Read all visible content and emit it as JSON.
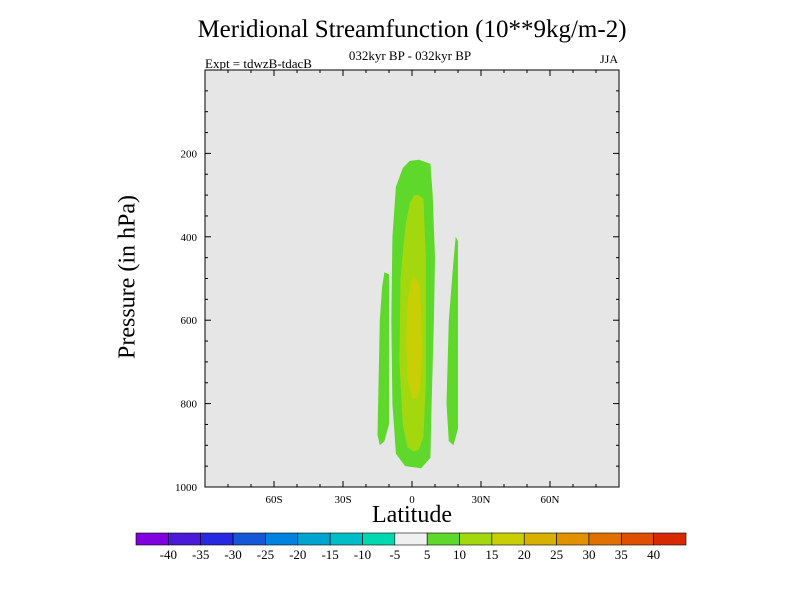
{
  "header": {
    "title": "Meridional Streamfunction (10**9kg/m-2)",
    "subtitle": "032kyr BP - 032kyr BP",
    "experiment": "Expt = tdwzB-tdacB",
    "season": "JJA"
  },
  "chart_data": {
    "type": "contour",
    "xlabel": "Latitude",
    "ylabel": "Pressure (in hPa)",
    "xlim": [
      -90,
      90
    ],
    "ylim": [
      1000,
      0
    ],
    "x_ticks": [
      {
        "value": -60,
        "label": "60S"
      },
      {
        "value": -30,
        "label": "30S"
      },
      {
        "value": 0,
        "label": "0"
      },
      {
        "value": 30,
        "label": "30N"
      },
      {
        "value": 60,
        "label": "60N"
      }
    ],
    "y_ticks": [
      {
        "value": 200,
        "label": "200"
      },
      {
        "value": 400,
        "label": "400"
      },
      {
        "value": 600,
        "label": "600"
      },
      {
        "value": 800,
        "label": "800"
      },
      {
        "value": 1000,
        "label": "1000"
      }
    ],
    "background_color": "#e6e6e6",
    "levels": [
      {
        "range": [
          5,
          10
        ],
        "color": "#5ed82a",
        "polygon": [
          [
            3,
            215
          ],
          [
            8,
            225
          ],
          [
            9,
            300
          ],
          [
            10,
            450
          ],
          [
            9.5,
            600
          ],
          [
            8.5,
            800
          ],
          [
            8,
            930
          ],
          [
            4,
            955
          ],
          [
            -3,
            950
          ],
          [
            -7,
            920
          ],
          [
            -8.5,
            800
          ],
          [
            -9,
            600
          ],
          [
            -8.5,
            400
          ],
          [
            -7,
            280
          ],
          [
            -4,
            235
          ],
          [
            -1,
            218
          ]
        ]
      },
      {
        "range": [
          5,
          10
        ],
        "color": "#5ed82a",
        "polygon": [
          [
            -12,
            485
          ],
          [
            -10,
            490
          ],
          [
            -10,
            850
          ],
          [
            -12,
            890
          ],
          [
            -14,
            900
          ],
          [
            -15,
            875
          ],
          [
            -14,
            600
          ],
          [
            -13,
            520
          ]
        ]
      },
      {
        "range": [
          5,
          10
        ],
        "color": "#5ed82a",
        "polygon": [
          [
            19,
            400
          ],
          [
            20,
            410
          ],
          [
            20,
            860
          ],
          [
            18,
            900
          ],
          [
            16,
            890
          ],
          [
            15,
            800
          ],
          [
            16,
            600
          ],
          [
            18,
            460
          ]
        ]
      },
      {
        "range": [
          10,
          15
        ],
        "color": "#a3d80e",
        "polygon": [
          [
            3,
            300
          ],
          [
            5,
            310
          ],
          [
            6,
            450
          ],
          [
            6,
            600
          ],
          [
            6,
            750
          ],
          [
            5,
            880
          ],
          [
            3,
            910
          ],
          [
            1,
            915
          ],
          [
            -2,
            905
          ],
          [
            -4,
            850
          ],
          [
            -5.5,
            700
          ],
          [
            -5,
            500
          ],
          [
            -3,
            380
          ],
          [
            -1,
            320
          ],
          [
            1,
            300
          ]
        ]
      },
      {
        "range": [
          15,
          20
        ],
        "color": "#c8d005",
        "polygon": [
          [
            1,
            495
          ],
          [
            3,
            510
          ],
          [
            4,
            580
          ],
          [
            4.5,
            680
          ],
          [
            3.5,
            760
          ],
          [
            2,
            790
          ],
          [
            0,
            785
          ],
          [
            -2,
            740
          ],
          [
            -2.5,
            650
          ],
          [
            -2,
            560
          ],
          [
            -0.5,
            505
          ]
        ]
      }
    ],
    "colorbar": {
      "labels": [
        "-40",
        "-35",
        "-30",
        "-25",
        "-20",
        "-15",
        "-10",
        "-5",
        "5",
        "10",
        "15",
        "20",
        "25",
        "30",
        "35",
        "40"
      ],
      "colors": [
        "#8000e0",
        "#4b19d8",
        "#2828e0",
        "#1458d8",
        "#0082e0",
        "#00a4d0",
        "#00bec8",
        "#00d8b0",
        "#f0f0f0",
        "#5ed82a",
        "#a3d80e",
        "#c8d005",
        "#d8b000",
        "#e09100",
        "#e07000",
        "#e04e00",
        "#d82800"
      ]
    }
  }
}
